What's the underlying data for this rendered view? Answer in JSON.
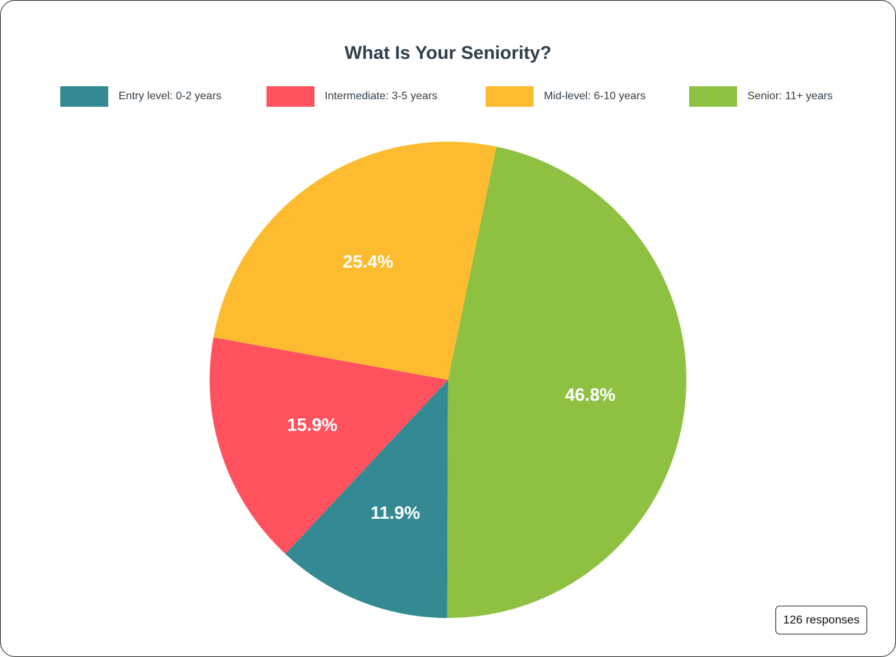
{
  "chart_data": {
    "type": "pie",
    "title": "What Is Your Seniority?",
    "categories": [
      "Entry level: 0-2 years",
      "Intermediate: 3-5 years",
      "Mid-level: 6-10 years",
      "Senior: 11+ years"
    ],
    "values": [
      11.9,
      15.9,
      25.4,
      46.8
    ],
    "labels": [
      "11.9%",
      "15.9%",
      "25.4%",
      "46.8%"
    ],
    "colors": [
      "#338a93",
      "#ff525e",
      "#fdbc2f",
      "#8ec042"
    ],
    "legend": "top"
  },
  "footer": {
    "responses": "126 responses"
  }
}
